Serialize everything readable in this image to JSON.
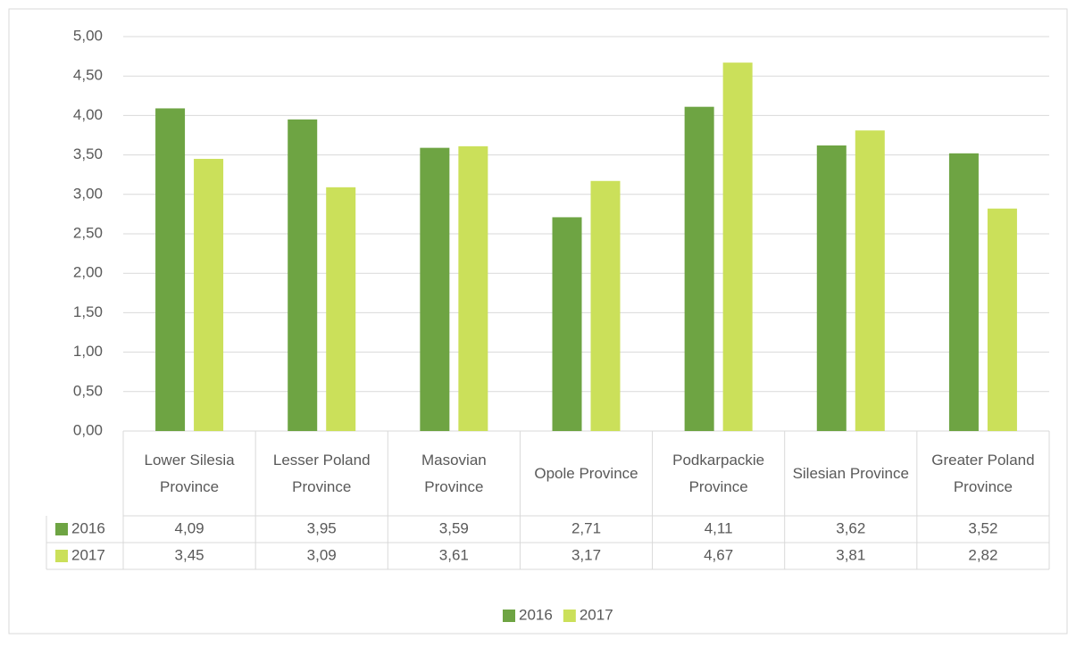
{
  "chart_data": {
    "type": "bar",
    "categories": [
      "Lower Silesia Province",
      "Lesser Poland Province",
      "Masovian Province",
      "Opole Province",
      "Podkarpackie Province",
      "Silesian Province",
      "Greater Poland Province"
    ],
    "series": [
      {
        "name": "2016",
        "color": "#6ea443",
        "values": [
          4.09,
          3.95,
          3.59,
          2.71,
          4.11,
          3.62,
          3.52
        ],
        "value_labels": [
          "4,09",
          "3,95",
          "3,59",
          "2,71",
          "4,11",
          "3,62",
          "3,52"
        ]
      },
      {
        "name": "2017",
        "color": "#cbe05a",
        "values": [
          3.45,
          3.09,
          3.61,
          3.17,
          4.67,
          3.81,
          2.82
        ],
        "value_labels": [
          "3,45",
          "3,09",
          "3,61",
          "3,17",
          "4,67",
          "3,81",
          "2,82"
        ]
      }
    ],
    "ylim": [
      0,
      5
    ],
    "yticks": [
      {
        "value": 0,
        "label": "0,00"
      },
      {
        "value": 0.5,
        "label": "0,50"
      },
      {
        "value": 1,
        "label": "1,00"
      },
      {
        "value": 1.5,
        "label": "1,50"
      },
      {
        "value": 2,
        "label": "2,00"
      },
      {
        "value": 2.5,
        "label": "2,50"
      },
      {
        "value": 3,
        "label": "3,00"
      },
      {
        "value": 3.5,
        "label": "3,50"
      },
      {
        "value": 4,
        "label": "4,00"
      },
      {
        "value": 4.5,
        "label": "4,50"
      },
      {
        "value": 5,
        "label": "5,00"
      }
    ],
    "grid": true,
    "legend": "bottom"
  }
}
